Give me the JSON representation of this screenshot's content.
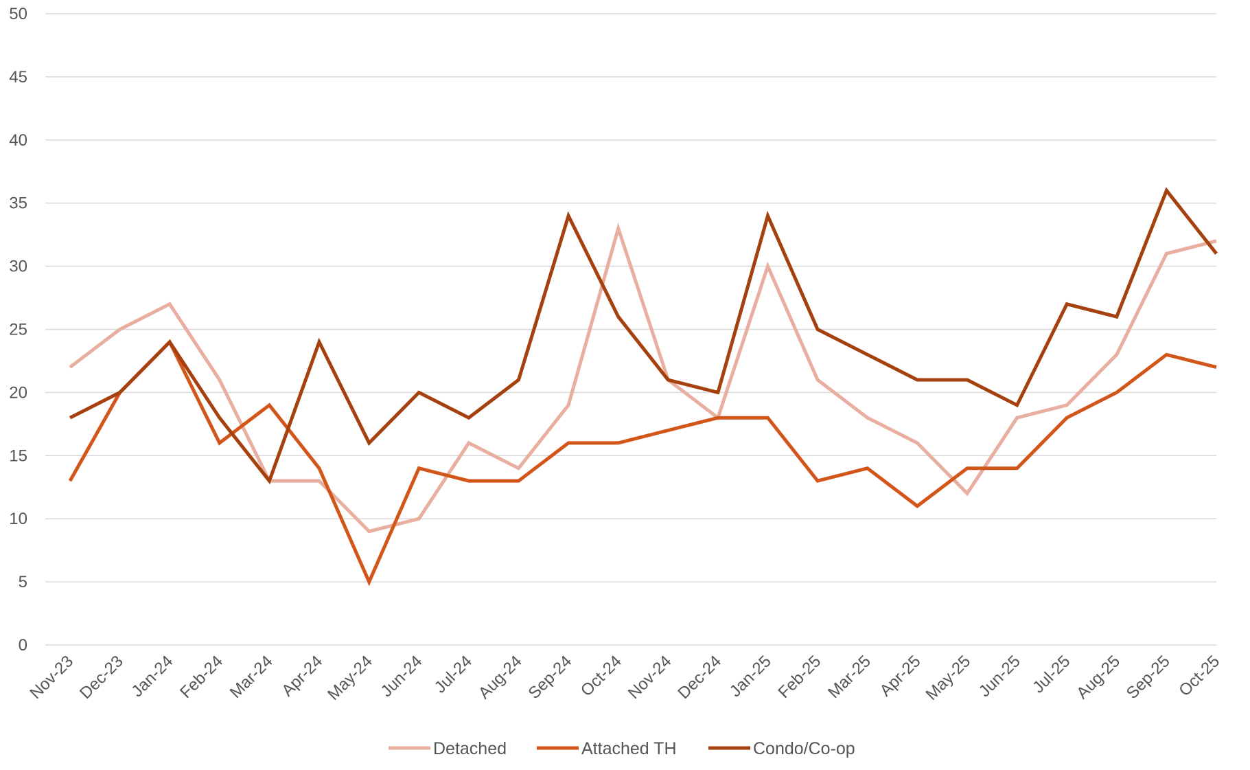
{
  "chart_data": {
    "type": "line",
    "title": "",
    "xlabel": "",
    "ylabel": "",
    "ylim": [
      0,
      50
    ],
    "yticks": [
      0,
      5,
      10,
      15,
      20,
      25,
      30,
      35,
      40,
      45,
      50
    ],
    "grid": true,
    "legend_position": "bottom",
    "categories": [
      "Nov-23",
      "Dec-23",
      "Jan-24",
      "Feb-24",
      "Mar-24",
      "Apr-24",
      "May-24",
      "Jun-24",
      "Jul-24",
      "Aug-24",
      "Sep-24",
      "Oct-24",
      "Nov-24",
      "Dec-24",
      "Jan-25",
      "Feb-25",
      "Mar-25",
      "Apr-25",
      "May-25",
      "Jun-25",
      "Jul-25",
      "Aug-25",
      "Sep-25",
      "Oct-25"
    ],
    "series": [
      {
        "name": "Detached",
        "color": "#e8aea0",
        "values": [
          22,
          25,
          27,
          21,
          13,
          13,
          9,
          10,
          16,
          14,
          19,
          33,
          21,
          18,
          30,
          21,
          18,
          16,
          12,
          18,
          19,
          23,
          31,
          32
        ]
      },
      {
        "name": "Attached TH",
        "color": "#d2561a",
        "values": [
          13,
          20,
          24,
          16,
          19,
          14,
          5,
          14,
          13,
          13,
          16,
          16,
          17,
          18,
          18,
          13,
          14,
          11,
          14,
          14,
          18,
          20,
          23,
          22
        ]
      },
      {
        "name": "Condo/Co-op",
        "color": "#a5400f",
        "values": [
          18,
          20,
          24,
          18,
          13,
          24,
          16,
          20,
          18,
          21,
          34,
          26,
          21,
          20,
          34,
          25,
          23,
          21,
          21,
          19,
          27,
          26,
          36,
          31
        ]
      }
    ]
  }
}
